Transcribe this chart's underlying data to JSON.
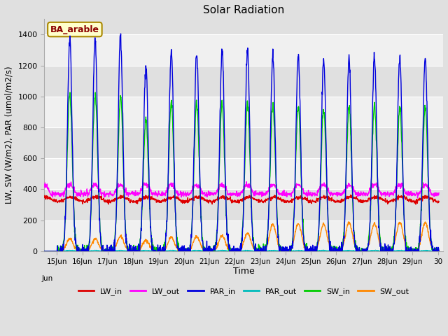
{
  "title": "Solar Radiation",
  "ylabel": "LW, SW (W/m2), PAR (umol/m2/s)",
  "xlabel": "Time",
  "annotation": "BA_arable",
  "ylim": [
    0,
    1500
  ],
  "yticks": [
    0,
    200,
    400,
    600,
    800,
    1000,
    1200,
    1400
  ],
  "xlim_days": [
    14.5,
    30.2
  ],
  "fig_bg": "#e0e0e0",
  "plot_bg": "#e0e0e0",
  "grid_color": "#ffffff",
  "colors": {
    "LW_in": "#dd0000",
    "LW_out": "#ff00ff",
    "PAR_in": "#0000dd",
    "PAR_out": "#00bbbb",
    "SW_in": "#00cc00",
    "SW_out": "#ff8800"
  },
  "xtick_positions": [
    15,
    16,
    17,
    18,
    19,
    20,
    21,
    22,
    23,
    24,
    25,
    26,
    27,
    28,
    29,
    30
  ],
  "xtick_labels": [
    "15Jun",
    "16Jun",
    "17Jun",
    "18Jun",
    "19Jun",
    "20Jun",
    "21Jun",
    "22Jun",
    "23Jun",
    "24Jun",
    "25Jun",
    "26Jun",
    "27Jun",
    "28Jun",
    "29Jun",
    "30"
  ]
}
